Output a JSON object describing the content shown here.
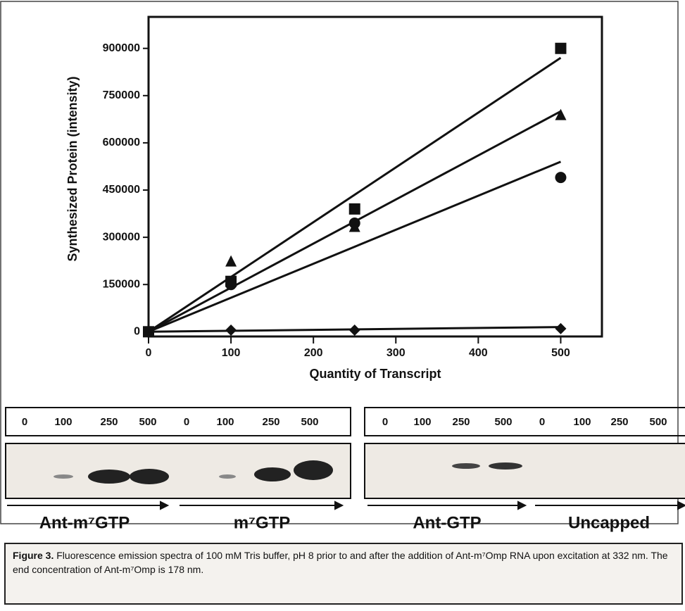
{
  "chart_data": {
    "type": "scatter",
    "ylabel": "Synthesized Protein (intensity)",
    "xlabel": "Quantity of Transcript",
    "xlim": [
      0,
      550
    ],
    "ylim": [
      -15000,
      1000000
    ],
    "xticks": [
      0,
      100,
      200,
      300,
      400,
      500
    ],
    "yticks": [
      0,
      150000,
      300000,
      450000,
      600000,
      750000,
      900000
    ],
    "color": "#111111",
    "series": [
      {
        "marker": "square",
        "x": [
          0,
          100,
          250,
          500
        ],
        "values": [
          0,
          160000,
          390000,
          900000
        ],
        "fit": {
          "x": [
            0,
            500
          ],
          "values": [
            0,
            870000
          ]
        }
      },
      {
        "marker": "triangle",
        "x": [
          100,
          250,
          500
        ],
        "values": [
          225000,
          335000,
          690000
        ],
        "fit": {
          "x": [
            0,
            500
          ],
          "values": [
            0,
            700000
          ]
        }
      },
      {
        "marker": "circle",
        "x": [
          100,
          250,
          500
        ],
        "values": [
          150000,
          345000,
          490000
        ],
        "fit": {
          "x": [
            0,
            500
          ],
          "values": [
            0,
            540000
          ]
        }
      },
      {
        "marker": "diamond",
        "x": [
          100,
          250,
          500
        ],
        "values": [
          5000,
          5000,
          10000
        ],
        "fit": {
          "x": [
            0,
            500
          ],
          "values": [
            0,
            15000
          ]
        }
      }
    ]
  },
  "gels": [
    {
      "lanes": [
        "0",
        "100",
        "250",
        "500",
        "0",
        "100",
        "250",
        "500"
      ],
      "groups": [
        "Ant-m⁷GTP",
        "m⁷GTP"
      ]
    },
    {
      "lanes": [
        "0",
        "100",
        "250",
        "500",
        "0",
        "100",
        "250",
        "500"
      ],
      "groups": [
        "Ant-GTP",
        "Uncapped"
      ]
    }
  ],
  "caption": {
    "label": "Figure 3.",
    "text": " Fluorescence emission spectra of 100 mM Tris buffer, pH 8 prior to and after the addition of Ant-m⁷Omp RNA upon excitation at 332 nm. The end concentration of Ant-m⁷Omp is 178 nm."
  }
}
